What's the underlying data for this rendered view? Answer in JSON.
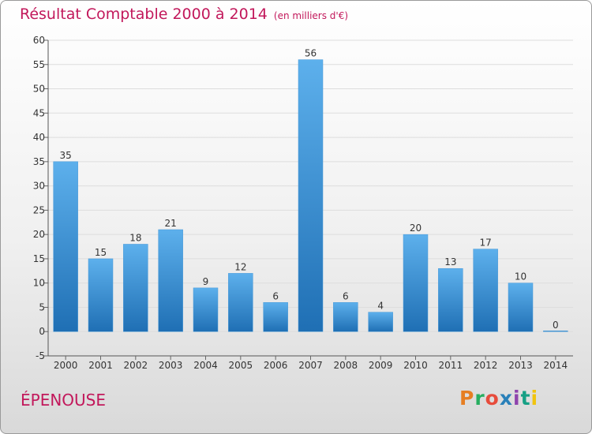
{
  "header": {
    "title": "Résultat Comptable 2000 à 2014",
    "unit": "(en milliers d'€)"
  },
  "footer": {
    "commune": "ÉPENOUSE",
    "logo": "Proxiti"
  },
  "colors": {
    "title": "#c2185b",
    "bar_top": "#5db0ec",
    "bar_bottom": "#1f6fb4",
    "logo": [
      "#e67e22",
      "#27ae60",
      "#e74c3c",
      "#2980b9",
      "#8e44ad",
      "#16a085",
      "#f1c40f"
    ]
  },
  "chart_data": {
    "type": "bar",
    "title": "Résultat Comptable 2000 à 2014",
    "ylabel": "en milliers d'€",
    "xlabel": "",
    "categories": [
      "2000",
      "2001",
      "2002",
      "2003",
      "2004",
      "2005",
      "2006",
      "2007",
      "2008",
      "2009",
      "2010",
      "2011",
      "2012",
      "2013",
      "2014"
    ],
    "values": [
      35,
      15,
      18,
      21,
      9,
      12,
      6,
      56,
      6,
      4,
      20,
      13,
      17,
      10,
      0
    ],
    "ylim": [
      -5,
      60
    ],
    "yticks": [
      -5,
      0,
      5,
      10,
      15,
      20,
      25,
      30,
      35,
      40,
      45,
      50,
      55,
      60
    ],
    "grid": true
  }
}
